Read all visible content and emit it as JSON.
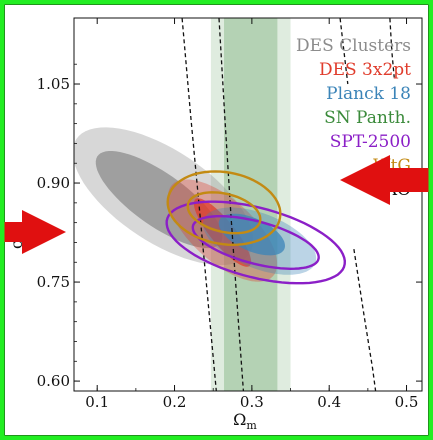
{
  "chart_data": {
    "type": "contour",
    "xlabel": "Ω",
    "xlabel_sub": "m",
    "ylabel": "σ",
    "ylabel_sub": "8",
    "xlim": [
      0.07,
      0.52
    ],
    "ylim": [
      0.585,
      1.15
    ],
    "xticks": [
      0.1,
      0.2,
      0.3,
      0.4,
      0.5
    ],
    "xtick_labels": [
      "0.1",
      "0.2",
      "0.3",
      "0.4",
      "0.5"
    ],
    "yticks": [
      0.6,
      0.75,
      0.9,
      1.05
    ],
    "ytick_labels": [
      "0.60",
      "0.75",
      "0.90",
      "1.05"
    ],
    "legend_placement": "top-right",
    "grid": false,
    "series": [
      {
        "name": "DES Clusters",
        "color": "#8c8c8c",
        "style": "filled",
        "contours": [
          {
            "level": "68%",
            "center": [
              0.18,
              0.875
            ],
            "semi_axes": [
              0.1035,
              0.0375
            ],
            "angle_deg": -41
          },
          {
            "level": "95%",
            "center": [
              0.185,
              0.88
            ],
            "semi_axes": [
              0.142,
              0.066
            ],
            "angle_deg": -40
          }
        ]
      },
      {
        "name": "DES 3x2pt",
        "color": "#e03c2c",
        "style": "filled",
        "contours": [
          {
            "level": "68%",
            "center": [
              0.262,
              0.825
            ],
            "semi_axes": [
              0.0615,
              0.0165
            ],
            "angle_deg": -56
          },
          {
            "level": "95%",
            "center": [
              0.262,
              0.828
            ],
            "semi_axes": [
              0.0954,
              0.0435
            ],
            "angle_deg": -49
          }
        ]
      },
      {
        "name": "Planck 18",
        "color": "#3b84b8",
        "style": "filled",
        "contours": [
          {
            "level": "68%",
            "center": [
              0.3,
              0.822
            ],
            "semi_axes": [
              0.0475,
              0.024
            ],
            "angle_deg": -30
          },
          {
            "level": "95%",
            "center": [
              0.31,
              0.812
            ],
            "semi_axes": [
              0.0795,
              0.0405
            ],
            "angle_deg": -27
          }
        ]
      },
      {
        "name": "SN Panth.",
        "color": "#3a8a3a",
        "style": "band",
        "bands": [
          {
            "level": "68%",
            "x_range": [
              0.264,
              0.333
            ]
          },
          {
            "level": "95%",
            "x_range": [
              0.247,
              0.35
            ]
          }
        ]
      },
      {
        "name": "SPT-2500",
        "color": "#8b1fc7",
        "style": "lines",
        "contours": [
          {
            "level": "68%",
            "center": [
              0.305,
              0.81
            ],
            "semi_axes": [
              0.085,
              0.0315
            ],
            "angle_deg": -18
          },
          {
            "level": "95%",
            "center": [
              0.305,
              0.81
            ],
            "semi_axes": [
              0.12,
              0.052
            ],
            "angle_deg": -18
          }
        ]
      },
      {
        "name": "WtG",
        "color": "#c38a13",
        "style": "lines",
        "contours": [
          {
            "level": "68%",
            "center": [
              0.264,
              0.855
            ],
            "semi_axes": [
              0.0485,
              0.0285
            ],
            "angle_deg": -18
          },
          {
            "level": "95%",
            "center": [
              0.264,
              0.862
            ],
            "semi_axes": [
              0.074,
              0.054
            ],
            "angle_deg": -15
          }
        ]
      },
      {
        "name": "BAO",
        "color": "#111111",
        "style": "dashed",
        "curves": [
          {
            "level": "95%",
            "points": [
              [
                0.209,
                1.16
              ],
              [
                0.221,
                1.0
              ],
              [
                0.233,
                0.85
              ],
              [
                0.245,
                0.7
              ],
              [
                0.254,
                0.585
              ]
            ]
          },
          {
            "level": "68%",
            "points": [
              [
                0.257,
                1.16
              ],
              [
                0.265,
                1.0
              ],
              [
                0.273,
                0.85
              ],
              [
                0.282,
                0.7
              ],
              [
                0.289,
                0.585
              ]
            ]
          },
          {
            "level": "68%",
            "points": [
              [
                0.413,
                1.16
              ],
              [
                0.419,
                1.1
              ],
              [
                0.424,
                1.05
              ]
            ]
          },
          {
            "level": "95%",
            "points": [
              [
                0.478,
                1.16
              ],
              [
                0.481,
                1.1
              ],
              [
                0.484,
                1.06
              ]
            ]
          },
          {
            "level": "68%",
            "points": [
              [
                0.432,
                0.8
              ],
              [
                0.445,
                0.7
              ],
              [
                0.456,
                0.62
              ],
              [
                0.46,
                0.585
              ]
            ]
          }
        ]
      }
    ]
  },
  "colors": {
    "frame": "#22ee22",
    "background": "#1f3a14"
  },
  "annotations": [
    {
      "name": "left-arrow",
      "color": "#e01010",
      "direction": "right"
    },
    {
      "name": "right-arrow",
      "color": "#e01010",
      "direction": "left"
    }
  ]
}
